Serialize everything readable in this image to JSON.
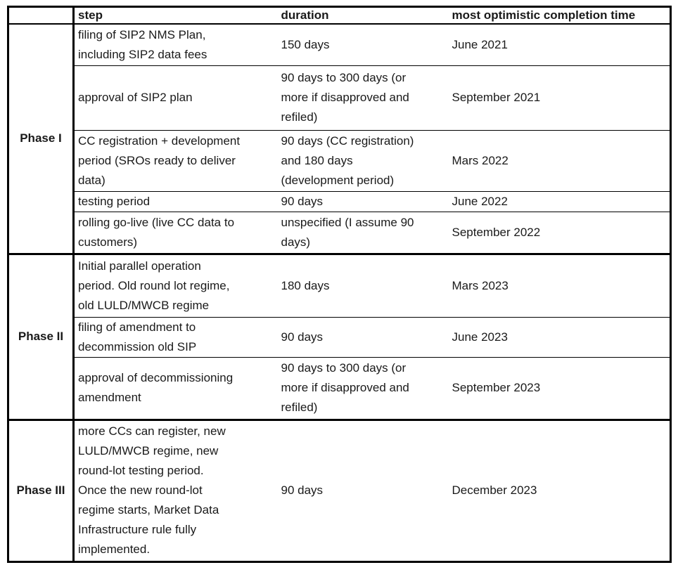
{
  "table": {
    "header": {
      "phase": "",
      "step": "step",
      "duration": "duration",
      "completion": "most optimistic completion time"
    },
    "phases": [
      {
        "label": "Phase I",
        "steps": [
          {
            "step": "filing of SIP2 NMS Plan,\nincluding SIP2 data fees",
            "duration": "150 days",
            "completion": "June 2021"
          },
          {
            "step": "approval of SIP2 plan",
            "duration": "90 days to 300 days (or\nmore if disapproved and\nrefiled)",
            "completion": "September 2021"
          },
          {
            "step": "CC registration + development\nperiod (SROs ready to deliver\ndata)",
            "duration": "90 days (CC registration)\nand 180 days\n(development period)",
            "completion": "Mars 2022"
          },
          {
            "step": "testing period",
            "duration": "90 days",
            "completion": "June 2022"
          },
          {
            "step": "rolling go-live (live CC data to\ncustomers)",
            "duration": "unspecified (I assume 90\ndays)",
            "completion": "September 2022"
          }
        ]
      },
      {
        "label": "Phase II",
        "steps": [
          {
            "step": "Initial parallel operation\nperiod. Old round lot regime,\nold LULD/MWCB regime",
            "duration": "180 days",
            "completion": "Mars 2023"
          },
          {
            "step": "filing of amendment to\ndecommission old SIP",
            "duration": "90 days",
            "completion": "June 2023"
          },
          {
            "step": "approval of decommissioning\namendment",
            "duration": "90 days to 300 days (or\nmore if disapproved and\nrefiled)",
            "completion": "September 2023"
          }
        ]
      },
      {
        "label": "Phase III",
        "steps": [
          {
            "step": "more CCs can register, new\nLULD/MWCB regime, new\nround-lot testing period.\nOnce the new round-lot\nregime starts, Market Data\nInfrastructure rule fully\nimplemented.",
            "duration": "90 days",
            "completion": "December 2023"
          }
        ]
      }
    ],
    "colors": {
      "border": "#000000",
      "text": "#1a1a1a",
      "background": "#ffffff"
    }
  }
}
